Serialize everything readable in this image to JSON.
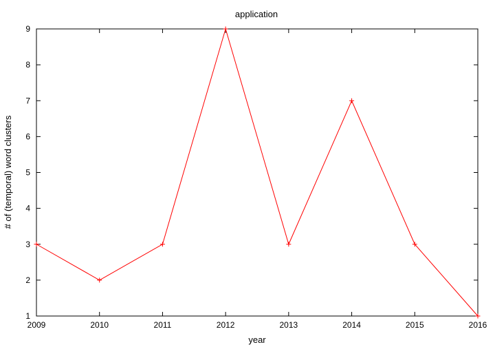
{
  "chart_data": {
    "type": "line",
    "title": "application",
    "xlabel": "year",
    "ylabel": "# of (temporal) word clusters",
    "xlim": [
      2009,
      2016
    ],
    "ylim": [
      1,
      9
    ],
    "xticks": [
      2009,
      2010,
      2011,
      2012,
      2013,
      2014,
      2015,
      2016
    ],
    "yticks": [
      1,
      2,
      3,
      4,
      5,
      6,
      7,
      8,
      9
    ],
    "grid": false,
    "series": [
      {
        "x": [
          2009,
          2010,
          2011,
          2012,
          2013,
          2014,
          2015,
          2016
        ],
        "values": [
          3,
          2,
          3,
          9,
          3,
          7,
          3,
          1
        ],
        "color": "#ff0000",
        "marker": "plus"
      }
    ]
  }
}
